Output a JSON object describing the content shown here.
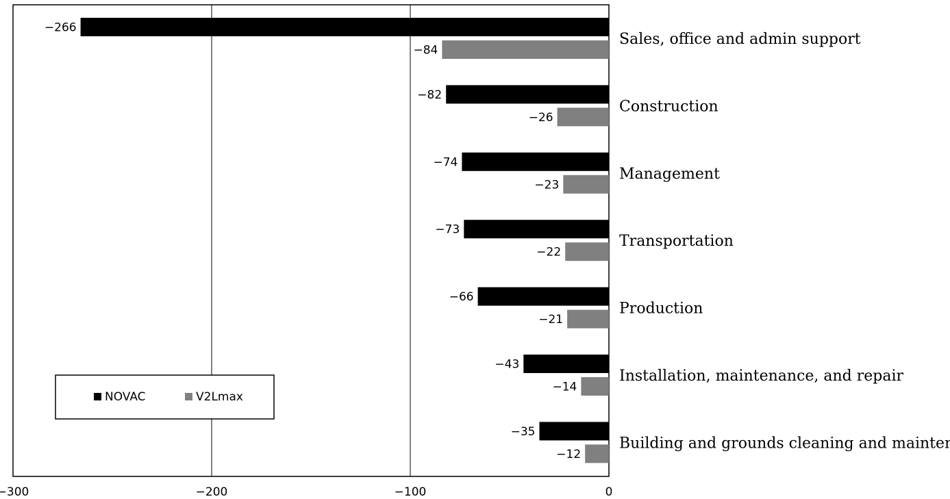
{
  "chart_data": {
    "type": "bar",
    "orientation": "horizontal",
    "categories": [
      "Sales, office and admin support",
      "Construction",
      "Management",
      "Transportation",
      "Production",
      "Installation, maintenance, and repair",
      "Building and grounds cleaning and maintenance"
    ],
    "series": [
      {
        "name": "NOVAC",
        "color": "#000000",
        "values": [
          -266,
          -82,
          -74,
          -73,
          -66,
          -43,
          -35
        ]
      },
      {
        "name": "V2Lmax",
        "color": "#808080",
        "values": [
          -84,
          -26,
          -23,
          -22,
          -21,
          -14,
          -12
        ]
      }
    ],
    "data_labels": {
      "NOVAC": [
        "−266",
        "−82",
        "−74",
        "−73",
        "−66",
        "−43",
        "−35"
      ],
      "V2Lmax": [
        "−84",
        "−26",
        "−23",
        "−22",
        "−21",
        "−14",
        "−12"
      ]
    },
    "xlim": [
      -300,
      0
    ],
    "x_ticks": [
      -300,
      -200,
      -100,
      0
    ],
    "x_tick_labels": [
      "−300",
      "−200",
      "−100",
      "0"
    ],
    "grid": "vertical",
    "legend_position": "bottom-left",
    "legend": [
      "NOVAC",
      "V2Lmax"
    ],
    "title": "",
    "xlabel": "",
    "ylabel": ""
  }
}
